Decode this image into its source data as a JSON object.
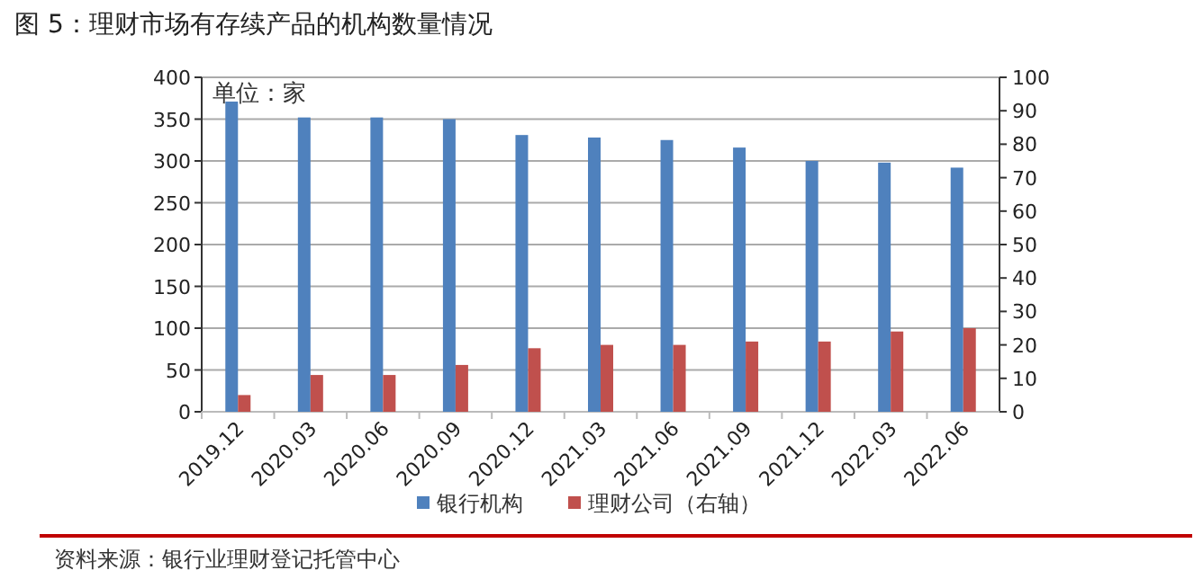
{
  "chart_data": {
    "type": "bar",
    "title": "图 5：理财市场有存续产品的机构数量情况",
    "categories": [
      "2019.12",
      "2020.03",
      "2020.06",
      "2020.09",
      "2020.12",
      "2021.03",
      "2021.06",
      "2021.09",
      "2021.12",
      "2022.03",
      "2022.06"
    ],
    "series": [
      {
        "name": "银行机构",
        "color": "#4f81bd",
        "values": [
          371,
          352,
          352,
          350,
          331,
          328,
          325,
          316,
          300,
          298,
          292
        ]
      },
      {
        "name": "理财公司（右轴）",
        "color": "#c0504d",
        "axis": "y2",
        "values": [
          5,
          11,
          11,
          14,
          19,
          20,
          20,
          21,
          21,
          24,
          25
        ]
      }
    ],
    "ylim": [
      0,
      400
    ],
    "yticks": [
      0,
      50,
      100,
      150,
      200,
      250,
      300,
      350,
      400
    ],
    "y2lim": [
      0,
      100
    ],
    "y2ticks": [
      0,
      10,
      20,
      30,
      40,
      50,
      60,
      70,
      80,
      90,
      100
    ],
    "grid": "y",
    "legend": "bottom",
    "annotations": [
      "单位：家",
      "资料来源：银行业理财登记托管中心"
    ]
  }
}
